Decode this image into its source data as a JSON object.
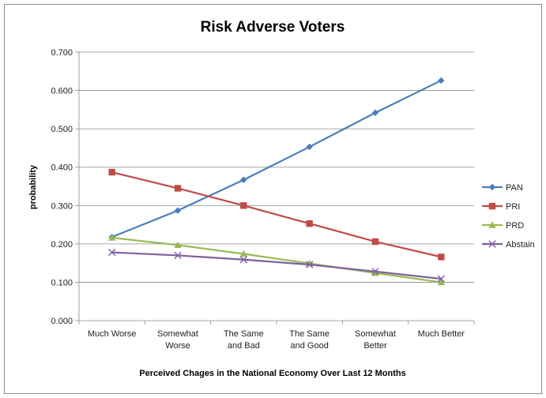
{
  "chart_data": {
    "type": "line",
    "title": "Risk Adverse Voters",
    "xlabel": "Perceived Chages in the National Economy Over Last 12 Months",
    "ylabel": "probability",
    "ylim": [
      0,
      0.7
    ],
    "yticks": [
      "0.000",
      "0.100",
      "0.200",
      "0.300",
      "0.400",
      "0.500",
      "0.600",
      "0.700"
    ],
    "categories": [
      [
        "Much Worse"
      ],
      [
        "Somewhat",
        "Worse"
      ],
      [
        "The Same",
        "and Bad"
      ],
      [
        "The Same",
        "and Good"
      ],
      [
        "Somewhat",
        "Better"
      ],
      [
        "Much Better"
      ]
    ],
    "grid": true,
    "legend_position": "right",
    "series": [
      {
        "name": "PAN",
        "color": "#4a7ebb",
        "marker": "diamond",
        "values": [
          0.218,
          0.287,
          0.367,
          0.453,
          0.542,
          0.626
        ]
      },
      {
        "name": "PRI",
        "color": "#be4b48",
        "marker": "square",
        "values": [
          0.387,
          0.345,
          0.3,
          0.253,
          0.206,
          0.166
        ]
      },
      {
        "name": "PRD",
        "color": "#98b954",
        "marker": "triangle",
        "values": [
          0.216,
          0.197,
          0.174,
          0.149,
          0.124,
          0.1
        ]
      },
      {
        "name": "Abstain",
        "color": "#7d60a0",
        "marker": "x",
        "values": [
          0.178,
          0.17,
          0.159,
          0.146,
          0.128,
          0.109
        ]
      }
    ]
  }
}
